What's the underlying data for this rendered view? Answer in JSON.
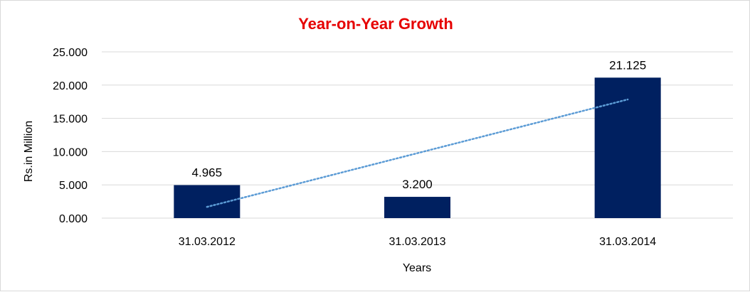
{
  "chart_data": {
    "type": "bar",
    "title": "Year-on-Year Growth",
    "xlabel": "Years",
    "ylabel": "Rs.in Million",
    "categories": [
      "31.03.2012",
      "31.03.2013",
      "31.03.2014"
    ],
    "values": [
      4.965,
      3.2,
      21.125
    ],
    "data_labels": [
      "4.965",
      "3.200",
      "21.125"
    ],
    "yticks": [
      "0.000",
      "5.000",
      "10.000",
      "15.000",
      "20.000",
      "25.000"
    ],
    "ylim": [
      0,
      25
    ],
    "grid": true,
    "trendline": {
      "type": "linear",
      "style": "dotted"
    },
    "legend": "none",
    "colors": {
      "bar": "#002060",
      "title": "#e60000",
      "trendline": "#5b9bd5",
      "grid": "#d9d9d9"
    }
  }
}
